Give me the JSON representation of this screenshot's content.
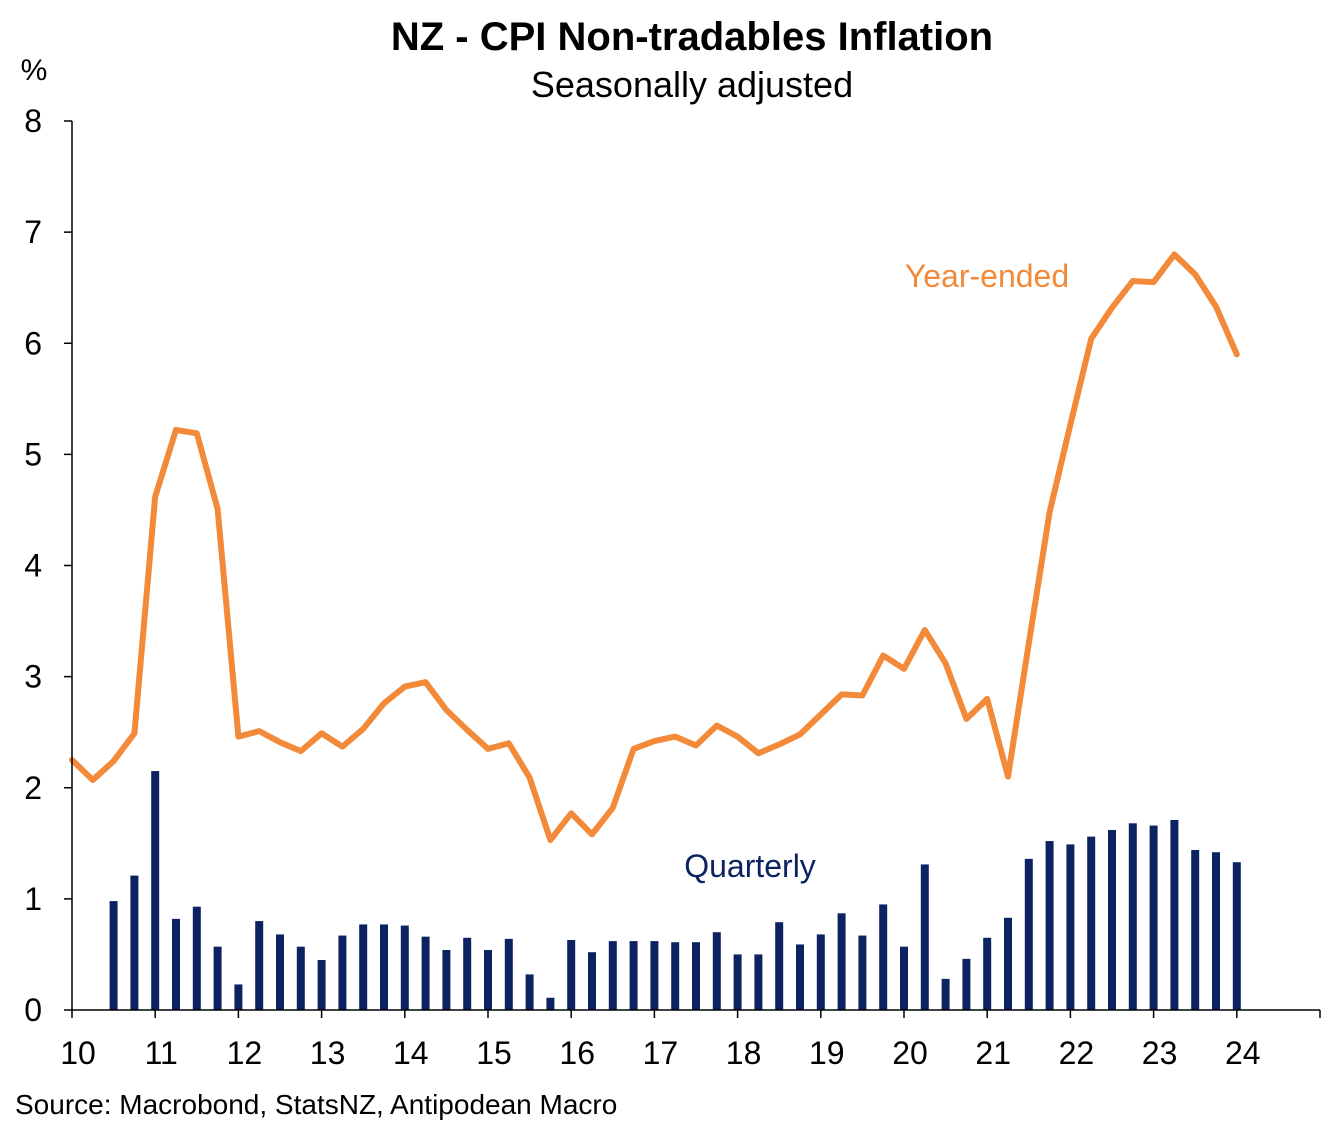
{
  "chart_data": {
    "type": "bar+line",
    "title": "NZ - CPI Non-tradables Inflation",
    "subtitle": "Seasonally adjusted",
    "ylabel": "%",
    "ylim": [
      0,
      8
    ],
    "yticks": [
      "0",
      "1",
      "2",
      "3",
      "4",
      "5",
      "6",
      "7",
      "8"
    ],
    "xlim": [
      2010,
      2025
    ],
    "xticks": [
      "10",
      "11",
      "12",
      "13",
      "14",
      "15",
      "16",
      "17",
      "18",
      "19",
      "20",
      "21",
      "22",
      "23",
      "24"
    ],
    "grid": false,
    "source": "Source: Macrobond, StatsNZ, Antipodean Macro",
    "series": [
      {
        "name": "Quarterly",
        "type": "bar",
        "color": "#0b2461",
        "x": [
          2010.5,
          2010.75,
          2011.0,
          2011.25,
          2011.5,
          2011.75,
          2012.0,
          2012.25,
          2012.5,
          2012.75,
          2013.0,
          2013.25,
          2013.5,
          2013.75,
          2014.0,
          2014.25,
          2014.5,
          2014.75,
          2015.0,
          2015.25,
          2015.5,
          2015.75,
          2016.0,
          2016.25,
          2016.5,
          2016.75,
          2017.0,
          2017.25,
          2017.5,
          2017.75,
          2018.0,
          2018.25,
          2018.5,
          2018.75,
          2019.0,
          2019.25,
          2019.5,
          2019.75,
          2020.0,
          2020.25,
          2020.5,
          2020.75,
          2021.0,
          2021.25,
          2021.5,
          2021.75,
          2022.0,
          2022.25,
          2022.5,
          2022.75,
          2023.0,
          2023.25,
          2023.5,
          2023.75,
          2024.0
        ],
        "values": [
          0.98,
          1.21,
          2.15,
          0.82,
          0.93,
          0.57,
          0.23,
          0.8,
          0.68,
          0.57,
          0.45,
          0.67,
          0.77,
          0.77,
          0.76,
          0.66,
          0.54,
          0.65,
          0.54,
          0.64,
          0.32,
          0.11,
          0.63,
          0.52,
          0.62,
          0.62,
          0.62,
          0.61,
          0.61,
          0.7,
          0.5,
          0.5,
          0.79,
          0.59,
          0.68,
          0.87,
          0.67,
          0.95,
          0.57,
          1.31,
          0.28,
          0.46,
          0.65,
          0.83,
          1.36,
          1.52,
          1.49,
          1.56,
          1.62,
          1.68,
          1.66,
          1.71,
          1.44,
          1.42,
          1.33
        ]
      },
      {
        "name": "Year-ended",
        "type": "line",
        "color": "#f28a3a",
        "x": [
          2010.0,
          2010.25,
          2010.5,
          2010.75,
          2011.0,
          2011.25,
          2011.5,
          2011.75,
          2012.0,
          2012.25,
          2012.5,
          2012.75,
          2013.0,
          2013.25,
          2013.5,
          2013.75,
          2014.0,
          2014.25,
          2014.5,
          2014.75,
          2015.0,
          2015.25,
          2015.5,
          2015.75,
          2016.0,
          2016.25,
          2016.5,
          2016.75,
          2017.0,
          2017.25,
          2017.5,
          2017.75,
          2018.0,
          2018.25,
          2018.5,
          2018.75,
          2019.0,
          2019.25,
          2019.5,
          2019.75,
          2020.0,
          2020.25,
          2020.5,
          2020.75,
          2021.0,
          2021.25,
          2021.5,
          2021.75,
          2022.0,
          2022.25,
          2022.5,
          2022.75,
          2023.0,
          2023.25,
          2023.5,
          2023.75,
          2024.0
        ],
        "values": [
          2.25,
          2.07,
          2.24,
          2.49,
          4.62,
          5.22,
          5.19,
          4.51,
          2.46,
          2.51,
          2.41,
          2.33,
          2.49,
          2.37,
          2.53,
          2.76,
          2.91,
          2.95,
          2.7,
          2.52,
          2.35,
          2.4,
          2.09,
          1.53,
          1.77,
          1.58,
          1.82,
          2.35,
          2.42,
          2.46,
          2.38,
          2.56,
          2.46,
          2.31,
          2.39,
          2.48,
          2.66,
          2.84,
          2.83,
          3.19,
          3.07,
          3.42,
          3.12,
          2.62,
          2.8,
          2.1,
          3.3,
          4.48,
          5.27,
          6.04,
          6.32,
          6.56,
          6.55,
          6.8,
          6.62,
          6.33,
          5.9
        ]
      }
    ]
  }
}
